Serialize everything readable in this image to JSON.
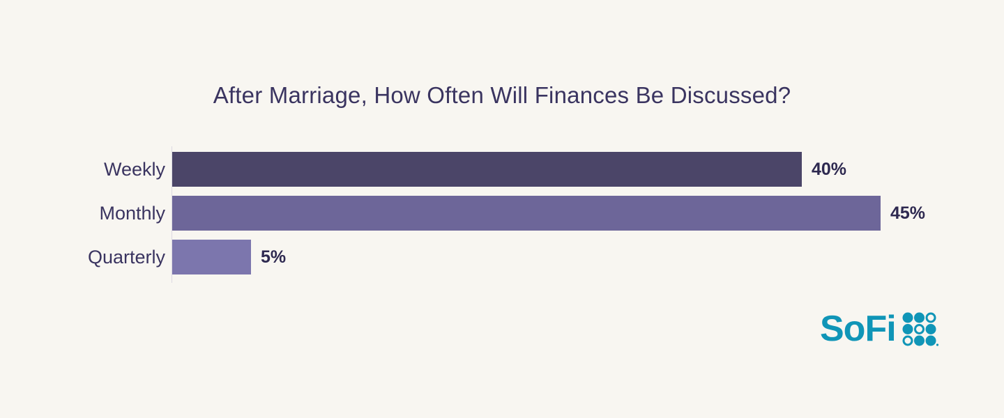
{
  "chart_data": {
    "type": "bar",
    "orientation": "horizontal",
    "title": "After Marriage, How Often Will Finances Be Discussed?",
    "categories": [
      "Weekly",
      "Monthly",
      "Quarterly"
    ],
    "values": [
      40,
      45,
      5
    ],
    "value_labels": [
      "40%",
      "45%",
      "5%"
    ],
    "unit": "%",
    "xlim": [
      0,
      50
    ],
    "grid": false,
    "legend": false,
    "bar_colors": [
      "#4b4568",
      "#6d6699",
      "#7c76ad"
    ],
    "value_label_position": "right-of-bar"
  },
  "branding": {
    "logo_text": "SoFi",
    "logo_color": "#1095b7",
    "dots_pattern": [
      [
        "filled",
        "filled",
        "outline"
      ],
      [
        "filled",
        "outline",
        "filled"
      ],
      [
        "outline",
        "filled",
        "filled"
      ]
    ],
    "trademark_mark": "."
  },
  "colors": {
    "background": "#f8f6f1",
    "title_text": "#3a3460",
    "category_text": "#3a3460",
    "value_text": "#2e2950",
    "axis_line": "#dcd9e2"
  }
}
